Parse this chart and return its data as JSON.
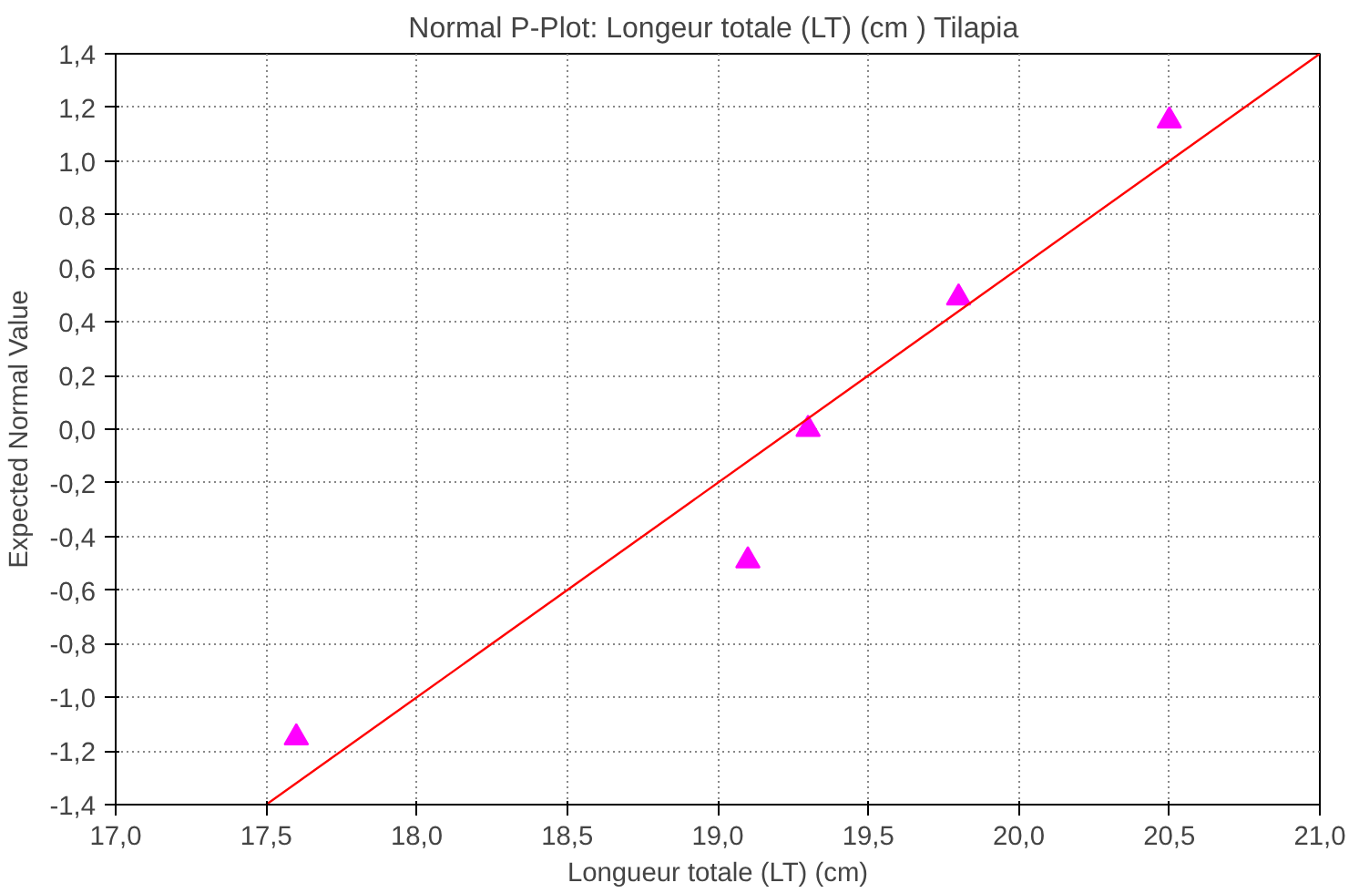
{
  "chart_data": {
    "type": "scatter",
    "title": "Normal P-Plot: Longeur totale  (LT) (cm ) Tilapia",
    "xlabel": "Longueur totale (LT) (cm)",
    "ylabel": "Expected Normal Value",
    "series": [
      {
        "color": "#ff00ff",
        "x": [
          17.6,
          19.1,
          19.3,
          19.8,
          20.5
        ],
        "values": [
          -1.15,
          -0.49,
          0.0,
          0.49,
          1.15
        ],
        "marker": "triangle"
      },
      {
        "type": "line",
        "color": "#ff0000",
        "x": [
          17.5,
          21.0
        ],
        "values": [
          -1.4,
          1.4
        ],
        "marker": "none"
      }
    ],
    "xlim": [
      17.0,
      21.0
    ],
    "ylim": [
      -1.4,
      1.4
    ],
    "xticks": [
      {
        "value": 17.0,
        "label": "17,0"
      },
      {
        "value": 17.5,
        "label": "17,5"
      },
      {
        "value": 18.0,
        "label": "18,0"
      },
      {
        "value": 18.5,
        "label": "18,5"
      },
      {
        "value": 19.0,
        "label": "19,0"
      },
      {
        "value": 19.5,
        "label": "19,5"
      },
      {
        "value": 20.0,
        "label": "20,0"
      },
      {
        "value": 20.5,
        "label": "20,5"
      },
      {
        "value": 21.0,
        "label": "21,0"
      }
    ],
    "yticks": [
      {
        "value": -1.4,
        "label": "-1,4"
      },
      {
        "value": -1.2,
        "label": "-1,2"
      },
      {
        "value": -1.0,
        "label": "-1,0"
      },
      {
        "value": -0.8,
        "label": "-0,8"
      },
      {
        "value": -0.6,
        "label": "-0,6"
      },
      {
        "value": -0.4,
        "label": "-0,4"
      },
      {
        "value": -0.2,
        "label": "-0,2"
      },
      {
        "value": 0.0,
        "label": "0,0"
      },
      {
        "value": 0.2,
        "label": "0,2"
      },
      {
        "value": 0.4,
        "label": "0,4"
      },
      {
        "value": 0.6,
        "label": "0,6"
      },
      {
        "value": 0.8,
        "label": "0,8"
      },
      {
        "value": 1.0,
        "label": "1,0"
      },
      {
        "value": 1.2,
        "label": "1,2"
      },
      {
        "value": 1.4,
        "label": "1,4"
      }
    ],
    "grid": true
  }
}
